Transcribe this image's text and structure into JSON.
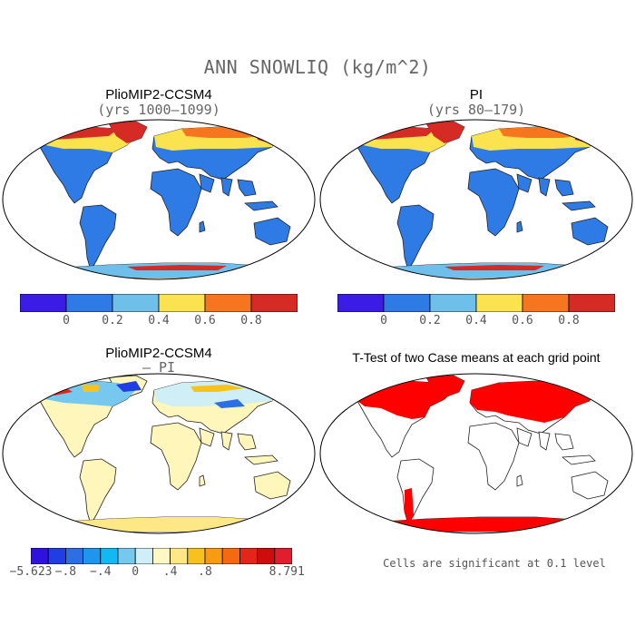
{
  "title": "ANN SNOWLIQ (kg/m^2)",
  "panels": [
    {
      "id": "p1",
      "title": "PlioMIP2-CCSM4",
      "subtitle": "(yrs 1000–1099)"
    },
    {
      "id": "p2",
      "title": "PI",
      "subtitle": "(yrs 80–179)"
    },
    {
      "id": "p3",
      "title": "PlioMIP2-CCSM4",
      "subtitle": "– PI"
    },
    {
      "id": "p4",
      "title": "T-Test of two Case means at each grid point",
      "subtitle": ""
    }
  ],
  "colorbar_abs": {
    "colors": [
      "#3a1ce6",
      "#2f7be6",
      "#6ebfea",
      "#fbe24f",
      "#f7751f",
      "#d62a24"
    ],
    "ticks": [
      "0",
      "0.2",
      "0.4",
      "0.6",
      "0.8"
    ]
  },
  "colorbar_diff": {
    "colors": [
      "#3012e0",
      "#1f3ee3",
      "#2c6fe4",
      "#1f96ee",
      "#10b9f2",
      "#77c8ef",
      "#cfeef6",
      "#fff8c4",
      "#fee885",
      "#f8c21c",
      "#f89b10",
      "#f56a10",
      "#e6251a",
      "#cf0c0c",
      "#e11d2e"
    ],
    "ticks": [
      "−5.623",
      "−.8",
      "−.4",
      "0",
      ".4",
      ".8",
      "8.791"
    ]
  },
  "note": "Cells are significant at 0.1 level",
  "map_colors": {
    "ocean": "#ffffff",
    "land_abs": "#2f7be6",
    "land_diff": "#fff6bc",
    "signif": "#ff0000"
  }
}
